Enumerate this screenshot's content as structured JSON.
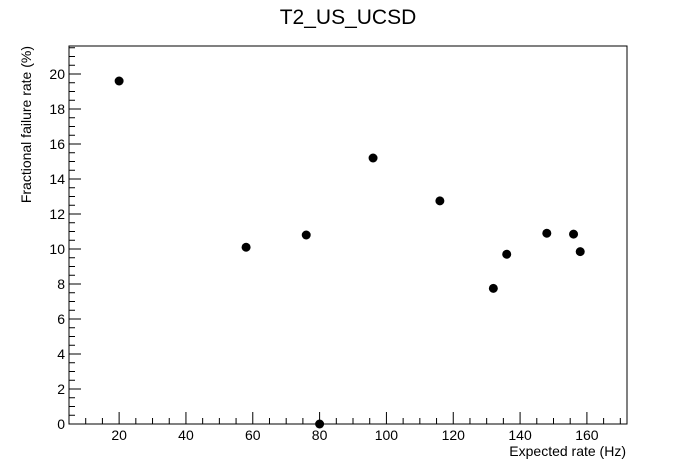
{
  "chart_data": {
    "type": "scatter",
    "title": "T2_US_UCSD",
    "xlabel": "Expected rate (Hz)",
    "ylabel": "Fractional failure rate (%)",
    "xlim": [
      5,
      172
    ],
    "ylim": [
      0,
      21.6
    ],
    "xticks": [
      20,
      40,
      60,
      80,
      100,
      120,
      140,
      160
    ],
    "yticks": [
      0,
      2,
      4,
      6,
      8,
      10,
      12,
      14,
      16,
      18,
      20
    ],
    "grid": false,
    "marker_color": "#000000",
    "points": [
      {
        "x": 20,
        "y": 19.6
      },
      {
        "x": 58,
        "y": 10.1
      },
      {
        "x": 76,
        "y": 10.8
      },
      {
        "x": 80,
        "y": 0
      },
      {
        "x": 96,
        "y": 15.2
      },
      {
        "x": 116,
        "y": 12.75
      },
      {
        "x": 132,
        "y": 7.75
      },
      {
        "x": 136,
        "y": 9.7
      },
      {
        "x": 148,
        "y": 10.9
      },
      {
        "x": 156,
        "y": 10.85
      },
      {
        "x": 158,
        "y": 9.85
      }
    ]
  }
}
